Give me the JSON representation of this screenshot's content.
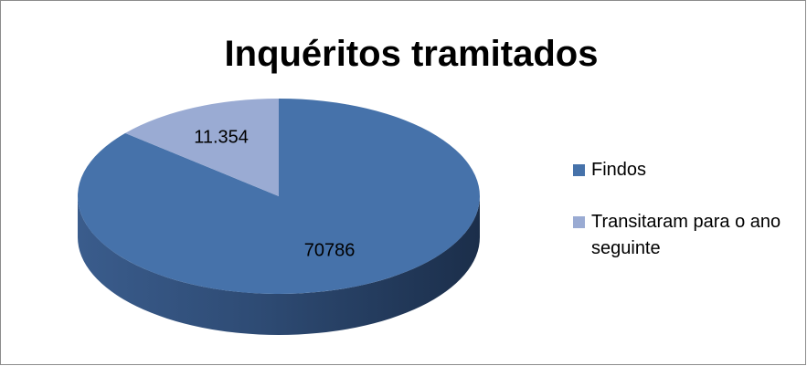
{
  "chart_data": {
    "type": "pie",
    "title": "Inquéritos tramitados",
    "categories": [
      "Findos",
      "Transitaram para o ano seguinte"
    ],
    "values": [
      70786,
      11354
    ],
    "value_labels": [
      "70786",
      "11.354"
    ],
    "colors": [
      "#4672aa",
      "#9aabd3"
    ],
    "legend": "right"
  }
}
